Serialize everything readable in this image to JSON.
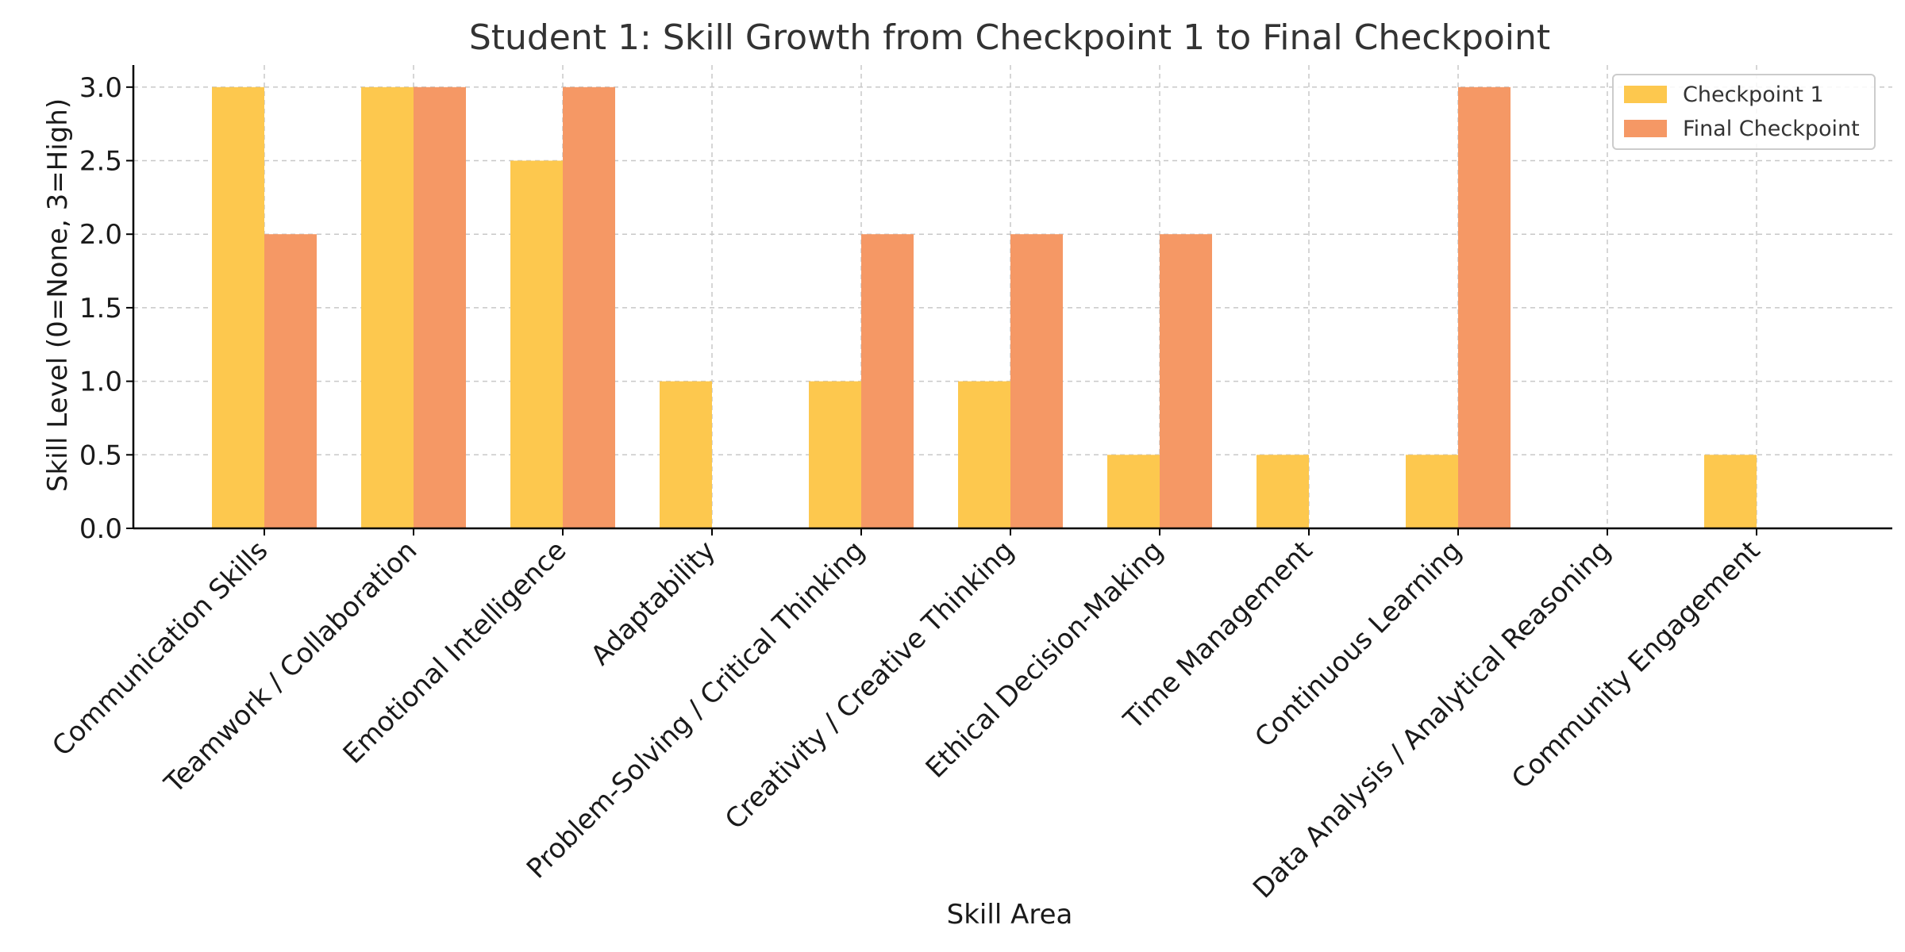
{
  "chart_data": {
    "type": "bar",
    "title": "Student 1: Skill Growth from Checkpoint 1 to Final Checkpoint",
    "xlabel": "Skill Area",
    "ylabel": "Skill Level (0=None, 3=High)",
    "categories": [
      "Communication Skills",
      "Teamwork / Collaboration",
      "Emotional Intelligence",
      "Adaptability",
      "Problem-Solving / Critical Thinking",
      "Creativity / Creative Thinking",
      "Ethical Decision-Making",
      "Time Management",
      "Continuous Learning",
      "Data Analysis / Analytical Reasoning",
      "Community Engagement"
    ],
    "series": [
      {
        "name": "Checkpoint 1",
        "color": "#fdc84e",
        "values": [
          3.0,
          3.0,
          2.5,
          1.0,
          1.0,
          1.0,
          0.5,
          0.5,
          0.5,
          0.0,
          0.5
        ]
      },
      {
        "name": "Final Checkpoint",
        "color": "#f59865",
        "values": [
          2.0,
          3.0,
          3.0,
          0.0,
          2.0,
          2.0,
          2.0,
          0.0,
          3.0,
          0.0,
          0.0
        ]
      }
    ],
    "ylim": [
      0,
      3.15
    ],
    "yticks": [
      "0.0",
      "0.5",
      "1.0",
      "1.5",
      "2.0",
      "2.5",
      "3.0"
    ],
    "grid": true,
    "legend_position": "top-right"
  }
}
